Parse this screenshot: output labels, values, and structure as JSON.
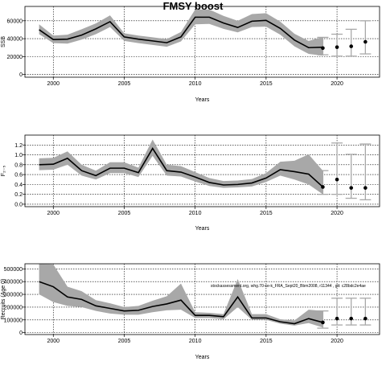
{
  "title": "FMSY boost",
  "annotation": "stockassessment.org, whg.70-ce-k_FRA_Sept20_Bbm2008, r11344 , git: c28bdc2e4ae",
  "colors": {
    "band": "#a8a8a8",
    "line": "#000000",
    "whisker": "#a8a8a8",
    "point": "#000000",
    "grid": "#000000"
  },
  "chart_data": [
    {
      "type": "line",
      "ylabel": "SSB",
      "xlabel": "Years",
      "xlim": [
        1998,
        2023
      ],
      "ylim": [
        -3000,
        76000
      ],
      "xticks": [
        2000,
        2005,
        2010,
        2015,
        2020
      ],
      "yticks": [
        0,
        20000,
        40000,
        60000
      ],
      "ytick_labels": [
        "0",
        "20000",
        "40000",
        "60000"
      ],
      "grid": true,
      "series": [
        {
          "x": [
            1999,
            2000,
            2001,
            2002,
            2003,
            2004,
            2005,
            2006,
            2007,
            2008,
            2009,
            2010,
            2011,
            2012,
            2013,
            2014,
            2015,
            2016,
            2017,
            2018,
            2019
          ],
          "mean": [
            50000,
            39000,
            39500,
            44000,
            51000,
            59000,
            42000,
            39500,
            37500,
            35500,
            42000,
            64000,
            64000,
            57500,
            52500,
            59500,
            60500,
            51500,
            38500,
            30000,
            30500
          ],
          "lower": [
            45000,
            35000,
            34500,
            39000,
            45000,
            53000,
            37500,
            35000,
            33000,
            31000,
            37000,
            56000,
            56500,
            51000,
            47000,
            53000,
            53500,
            44500,
            31500,
            23000,
            21000
          ],
          "upper": [
            56000,
            43500,
            44500,
            50500,
            57000,
            66000,
            46000,
            43500,
            41500,
            39500,
            47500,
            72500,
            72500,
            65500,
            60000,
            67500,
            68500,
            59000,
            45500,
            37500,
            42000
          ]
        }
      ],
      "forecast": {
        "x": [
          2019,
          2020,
          2021,
          2022
        ],
        "median": [
          29500,
          30500,
          31500,
          36500
        ],
        "lower": [
          22000,
          20500,
          20500,
          23000
        ],
        "upper": [
          41500,
          45000,
          50500,
          60000
        ]
      }
    },
    {
      "type": "line",
      "ylabel": "F₂₋₅",
      "xlabel": "Years",
      "xlim": [
        1998,
        2023
      ],
      "ylim": [
        -0.05,
        1.4
      ],
      "xticks": [
        2000,
        2005,
        2010,
        2015,
        2020
      ],
      "yticks": [
        0.0,
        0.2,
        0.4,
        0.6,
        0.8,
        1.0,
        1.2
      ],
      "ytick_labels": [
        "0.0",
        "0.2",
        "0.4",
        "0.6",
        "0.8",
        "1.0",
        "1.2"
      ],
      "grid": true,
      "series": [
        {
          "x": [
            1999,
            2000,
            2001,
            2002,
            2003,
            2004,
            2005,
            2006,
            2007,
            2008,
            2009,
            2010,
            2011,
            2012,
            2013,
            2014,
            2015,
            2016,
            2017,
            2018,
            2019
          ],
          "mean": [
            0.8,
            0.81,
            0.93,
            0.68,
            0.58,
            0.73,
            0.73,
            0.64,
            1.13,
            0.68,
            0.65,
            0.55,
            0.44,
            0.39,
            0.4,
            0.43,
            0.53,
            0.7,
            0.66,
            0.61,
            0.35
          ],
          "lower": [
            0.69,
            0.7,
            0.8,
            0.58,
            0.5,
            0.63,
            0.63,
            0.55,
            0.98,
            0.58,
            0.56,
            0.46,
            0.37,
            0.33,
            0.34,
            0.36,
            0.45,
            0.58,
            0.5,
            0.4,
            0.2
          ],
          "upper": [
            0.93,
            0.94,
            1.07,
            0.8,
            0.68,
            0.85,
            0.85,
            0.74,
            1.31,
            0.8,
            0.77,
            0.65,
            0.53,
            0.47,
            0.48,
            0.51,
            0.63,
            0.86,
            0.88,
            1.01,
            0.68
          ]
        }
      ],
      "forecast": {
        "x": [
          2019,
          2020,
          2021,
          2022
        ],
        "median": [
          0.35,
          0.5,
          0.33,
          0.33
        ],
        "lower": [
          0.2,
          0.2,
          0.12,
          0.09
        ],
        "upper": [
          0.68,
          1.24,
          1.01,
          1.22
        ]
      }
    },
    {
      "type": "line",
      "ylabel": "Recruits (Age 0)",
      "xlabel": "Years",
      "xlim": [
        1998,
        2023
      ],
      "ylim": [
        -15000,
        540000
      ],
      "xticks": [
        2000,
        2005,
        2010,
        2015,
        2020
      ],
      "yticks": [
        0,
        100000,
        200000,
        300000,
        400000,
        500000
      ],
      "ytick_labels": [
        "0",
        "100000",
        "200000",
        "300000",
        "400000",
        "500000"
      ],
      "grid": true,
      "series": [
        {
          "x": [
            1999,
            2000,
            2001,
            2002,
            2003,
            2004,
            2005,
            2006,
            2007,
            2008,
            2009,
            2010,
            2011,
            2012,
            2013,
            2014,
            2015,
            2016,
            2017,
            2018,
            2019
          ],
          "mean": [
            400000,
            360000,
            280000,
            260000,
            210000,
            190000,
            170000,
            175000,
            205000,
            225000,
            255000,
            135000,
            135000,
            125000,
            280000,
            115000,
            115000,
            85000,
            70000,
            110000,
            80000
          ],
          "lower": [
            300000,
            240000,
            210000,
            200000,
            170000,
            150000,
            140000,
            140000,
            160000,
            175000,
            180000,
            115000,
            115000,
            105000,
            200000,
            100000,
            100000,
            70000,
            55000,
            75000,
            40000
          ],
          "upper": [
            540000,
            535000,
            360000,
            325000,
            255000,
            230000,
            200000,
            210000,
            250000,
            285000,
            385000,
            160000,
            155000,
            145000,
            420000,
            145000,
            145000,
            105000,
            95000,
            180000,
            170000
          ]
        }
      ],
      "forecast": {
        "x": [
          2019,
          2020,
          2021,
          2022
        ],
        "median": [
          80000,
          110000,
          110000,
          110000
        ],
        "lower": [
          35000,
          60000,
          60000,
          60000
        ],
        "upper": [
          170000,
          270000,
          270000,
          270000
        ]
      }
    }
  ]
}
